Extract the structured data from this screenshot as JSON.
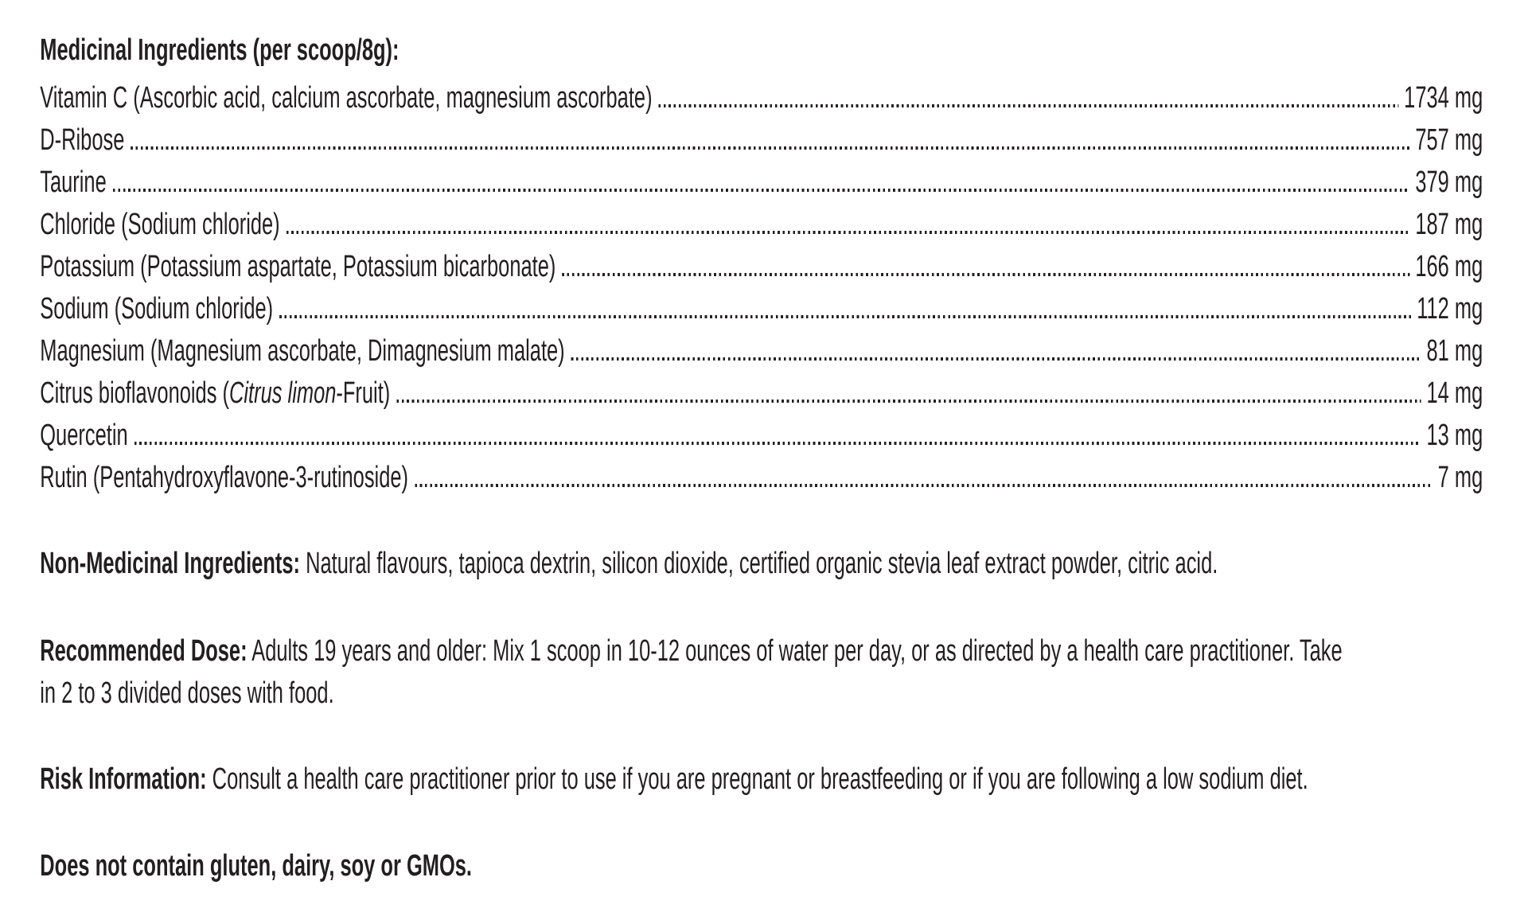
{
  "colors": {
    "text": "#231f20",
    "background": "#ffffff"
  },
  "label": {
    "medicinal": {
      "heading": "Medicinal Ingredients (per scoop/8g):",
      "rows": [
        {
          "name": "Vitamin C (Ascorbic acid, calcium ascorbate, magnesium ascorbate)",
          "amount": "1734 mg"
        },
        {
          "name": "D-Ribose",
          "amount": "757 mg"
        },
        {
          "name": "Taurine",
          "amount": "379 mg"
        },
        {
          "name": "Chloride (Sodium chloride)",
          "amount": "187 mg"
        },
        {
          "name": "Potassium (Potassium aspartate, Potassium bicarbonate)",
          "amount": "166 mg"
        },
        {
          "name": "Sodium (Sodium chloride)",
          "amount": "112 mg"
        },
        {
          "name": "Magnesium (Magnesium ascorbate, Dimagnesium malate)",
          "amount": "81 mg"
        },
        {
          "name_pre": "Citrus bioflavonoids (",
          "name_italic": "Citrus limon",
          "name_post": "-Fruit)",
          "amount": "14 mg"
        },
        {
          "name": "Quercetin",
          "amount": "13 mg"
        },
        {
          "name": "Rutin (Pentahydroxyflavone-3-rutinoside)",
          "amount": "7 mg"
        }
      ]
    },
    "non_medicinal": {
      "label": "Non-Medicinal Ingredients:",
      "text": "Natural flavours, tapioca dextrin, silicon dioxide, certified organic stevia leaf extract powder, citric acid."
    },
    "recommended_dose": {
      "label": "Recommended Dose:",
      "lines": [
        "Adults 19 years and older: Mix 1 scoop in 10-12 ounces of water per day, or as directed by a health care practitioner. Take",
        "in 2 to 3 divided doses with food."
      ]
    },
    "risk_information": {
      "label": "Risk Information:",
      "text": "Consult a health care practitioner prior to use if you are pregnant or breastfeeding or if you are following a low sodium diet."
    },
    "contains": {
      "text": "Does not contain gluten, dairy, soy or GMOs."
    }
  }
}
